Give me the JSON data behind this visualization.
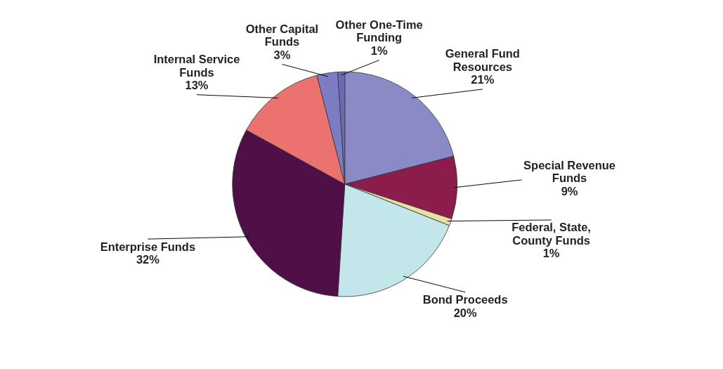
{
  "chart_data": {
    "type": "pie",
    "categories": [
      "General Fund Resources",
      "Special Revenue Funds",
      "Federal, State, County Funds",
      "Bond Proceeds",
      "Enterprise Funds",
      "Internal Service Funds",
      "Other Capital Funds",
      "Other One-Time Funding"
    ],
    "values": [
      21,
      9,
      1,
      20,
      32,
      13,
      3,
      1
    ],
    "colors": [
      "#8a8ac6",
      "#8c1c4c",
      "#e8dfa0",
      "#c2e6ea",
      "#4e1046",
      "#ec7270",
      "#7c7cc2",
      "#6a6ab6"
    ],
    "value_labels": [
      "21%",
      "9%",
      "1%",
      "20%",
      "32%",
      "13%",
      "3%",
      "1%"
    ]
  }
}
